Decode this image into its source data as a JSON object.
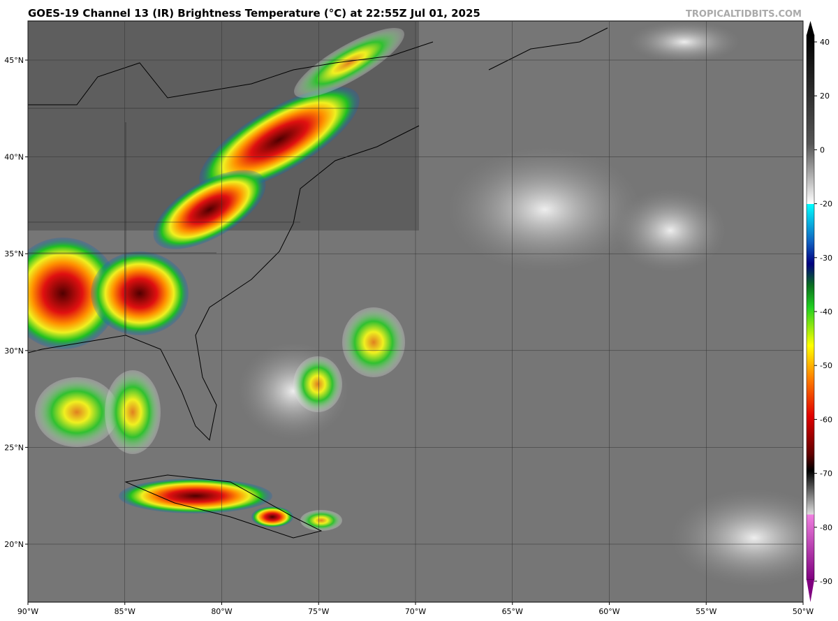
{
  "map": {
    "title": "GOES-19 Channel 13 (IR) Brightness Temperature (°C) at 22:55Z Jul 01, 2025",
    "credit": "TROPICALTIDBITS.COM",
    "lon_ticks": [
      {
        "value": -90,
        "label": "90°W"
      },
      {
        "value": -85,
        "label": "85°W"
      },
      {
        "value": -80,
        "label": "80°W"
      },
      {
        "value": -75,
        "label": "75°W"
      },
      {
        "value": -70,
        "label": "70°W"
      },
      {
        "value": -65,
        "label": "65°W"
      },
      {
        "value": -60,
        "label": "60°W"
      },
      {
        "value": -55,
        "label": "55°W"
      },
      {
        "value": -50,
        "label": "50°W"
      }
    ],
    "lat_ticks": [
      {
        "value": 45,
        "label": "45°N"
      },
      {
        "value": 40,
        "label": "40°N"
      },
      {
        "value": 35,
        "label": "35°N"
      },
      {
        "value": 30,
        "label": "30°N"
      },
      {
        "value": 25,
        "label": "25°N"
      },
      {
        "value": 20,
        "label": "20°N"
      }
    ],
    "colorbar_ticks": [
      40,
      20,
      0,
      -20,
      -30,
      -40,
      -50,
      -60,
      -70,
      -80,
      -90
    ]
  }
}
